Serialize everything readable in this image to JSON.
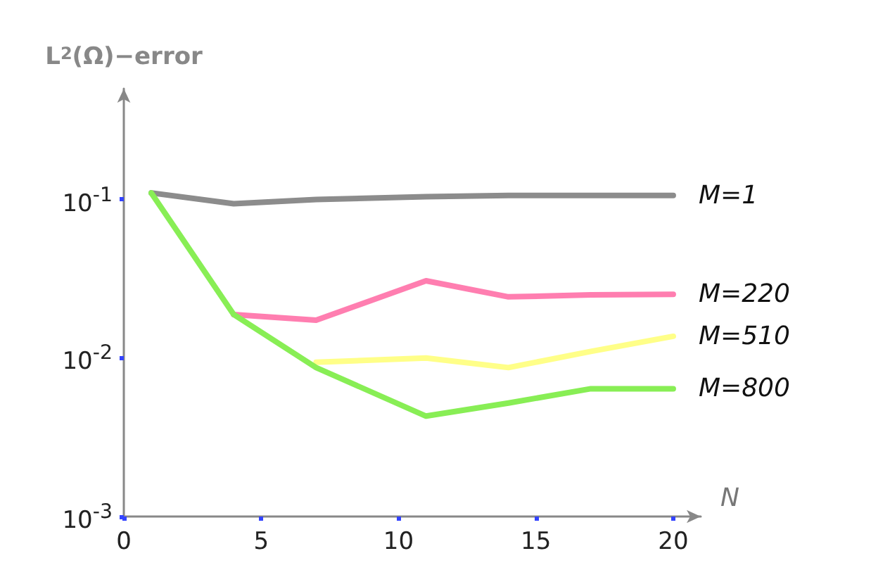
{
  "chart_data": {
    "type": "line",
    "xlabel": "N",
    "ylabel": "L$^{2}$(Ω)−error",
    "x": [
      1,
      4,
      7,
      11,
      14,
      17,
      20
    ],
    "series": [
      {
        "name": "M=1",
        "color": "#8c8c8c",
        "values": [
          0.11,
          0.094,
          0.1,
          0.104,
          0.106,
          0.106,
          0.106
        ]
      },
      {
        "name": "M=220",
        "color": "#ff7eb0",
        "values": [
          null,
          0.0188,
          0.0173,
          0.0307,
          0.0243,
          0.025,
          0.0252
        ]
      },
      {
        "name": "M=510",
        "color": "#ffff88",
        "values": [
          null,
          null,
          0.0094,
          0.01,
          0.0087,
          0.011,
          0.0137
        ]
      },
      {
        "name": "M=800",
        "color": "#88ee55",
        "values": [
          0.11,
          0.0188,
          0.0087,
          0.0043,
          0.0052,
          0.0064,
          0.0064
        ]
      }
    ],
    "xlim": [
      0,
      21
    ],
    "xticks": [
      0,
      5,
      10,
      15,
      20
    ],
    "ylim": [
      0.001,
      0.5
    ],
    "yticks": [
      {
        "value": 0.001,
        "label": "10$^{-3}$"
      },
      {
        "value": 0.01,
        "label": "10$^{-2}$"
      },
      {
        "value": 0.1,
        "label": "10$^{-1}$"
      }
    ],
    "log": "y",
    "grid": false,
    "legend": false,
    "marker": "none",
    "line_style": "solid"
  }
}
